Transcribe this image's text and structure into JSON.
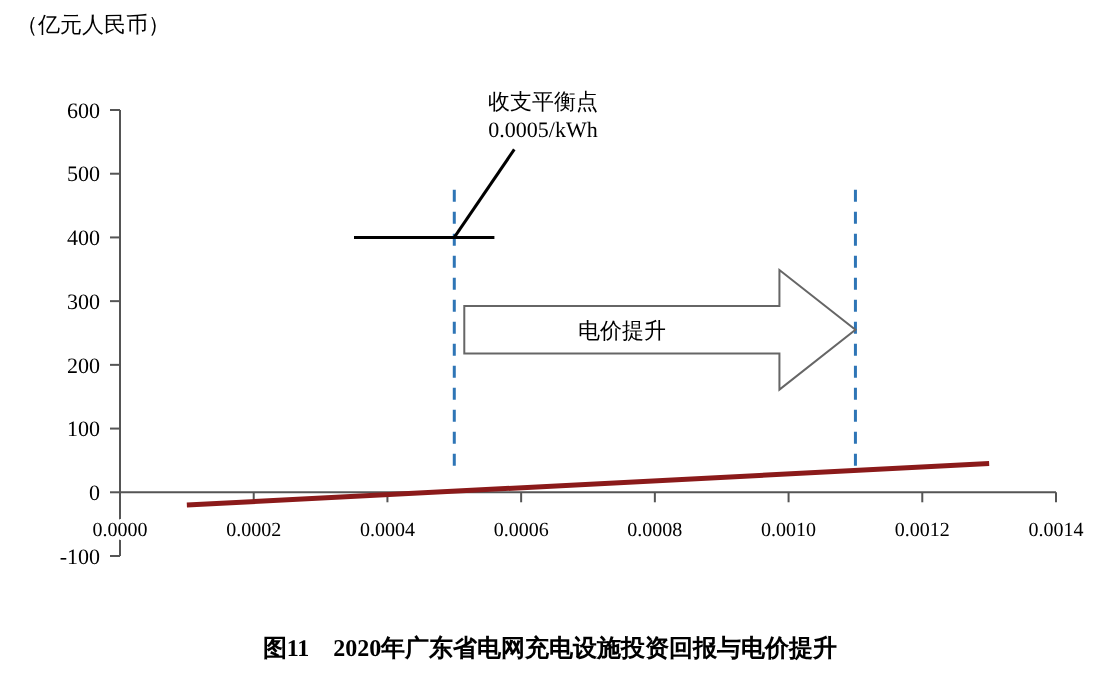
{
  "chart_data": {
    "type": "line",
    "title": "图11　2020年广东省电网充电设施投资回报与电价提升",
    "ylabel": "（亿元人民币）",
    "x": [
      0.0001,
      0.0013
    ],
    "series": [
      {
        "color": "#8b1a1a",
        "values": [
          -20,
          45
        ]
      },
      {
        "color": "#000000",
        "x": [
          0.00035,
          0.00056
        ],
        "values": [
          400,
          400
        ]
      }
    ],
    "xlim": [
      0,
      0.0014
    ],
    "xticks": [
      {
        "value": 0,
        "label": "0.0000"
      },
      {
        "value": 0.0002,
        "label": "0.0002"
      },
      {
        "value": 0.0004,
        "label": "0.0004"
      },
      {
        "value": 0.0006,
        "label": "0.0006"
      },
      {
        "value": 0.0008,
        "label": "0.0008"
      },
      {
        "value": 0.001,
        "label": "0.0010"
      },
      {
        "value": 0.0012,
        "label": "0.0012"
      },
      {
        "value": 0.0014,
        "label": "0.0014"
      }
    ],
    "ylim": [
      -100,
      600
    ],
    "yticks": [
      -100,
      0,
      100,
      200,
      300,
      400,
      500,
      600
    ],
    "ref_lines": [
      {
        "axis": "x",
        "value": 0.0005,
        "color": "#2e75b6",
        "line_style": "dashed"
      },
      {
        "axis": "x",
        "value": 0.0011,
        "color": "#2e75b6",
        "line_style": "dashed"
      }
    ],
    "annotations": [
      {
        "text": "收支平衡点\n0.0005/kWh",
        "x": 0.0005,
        "y": 400
      },
      "电价提升"
    ],
    "grid": false,
    "marker": "none",
    "line_style": "solid"
  }
}
